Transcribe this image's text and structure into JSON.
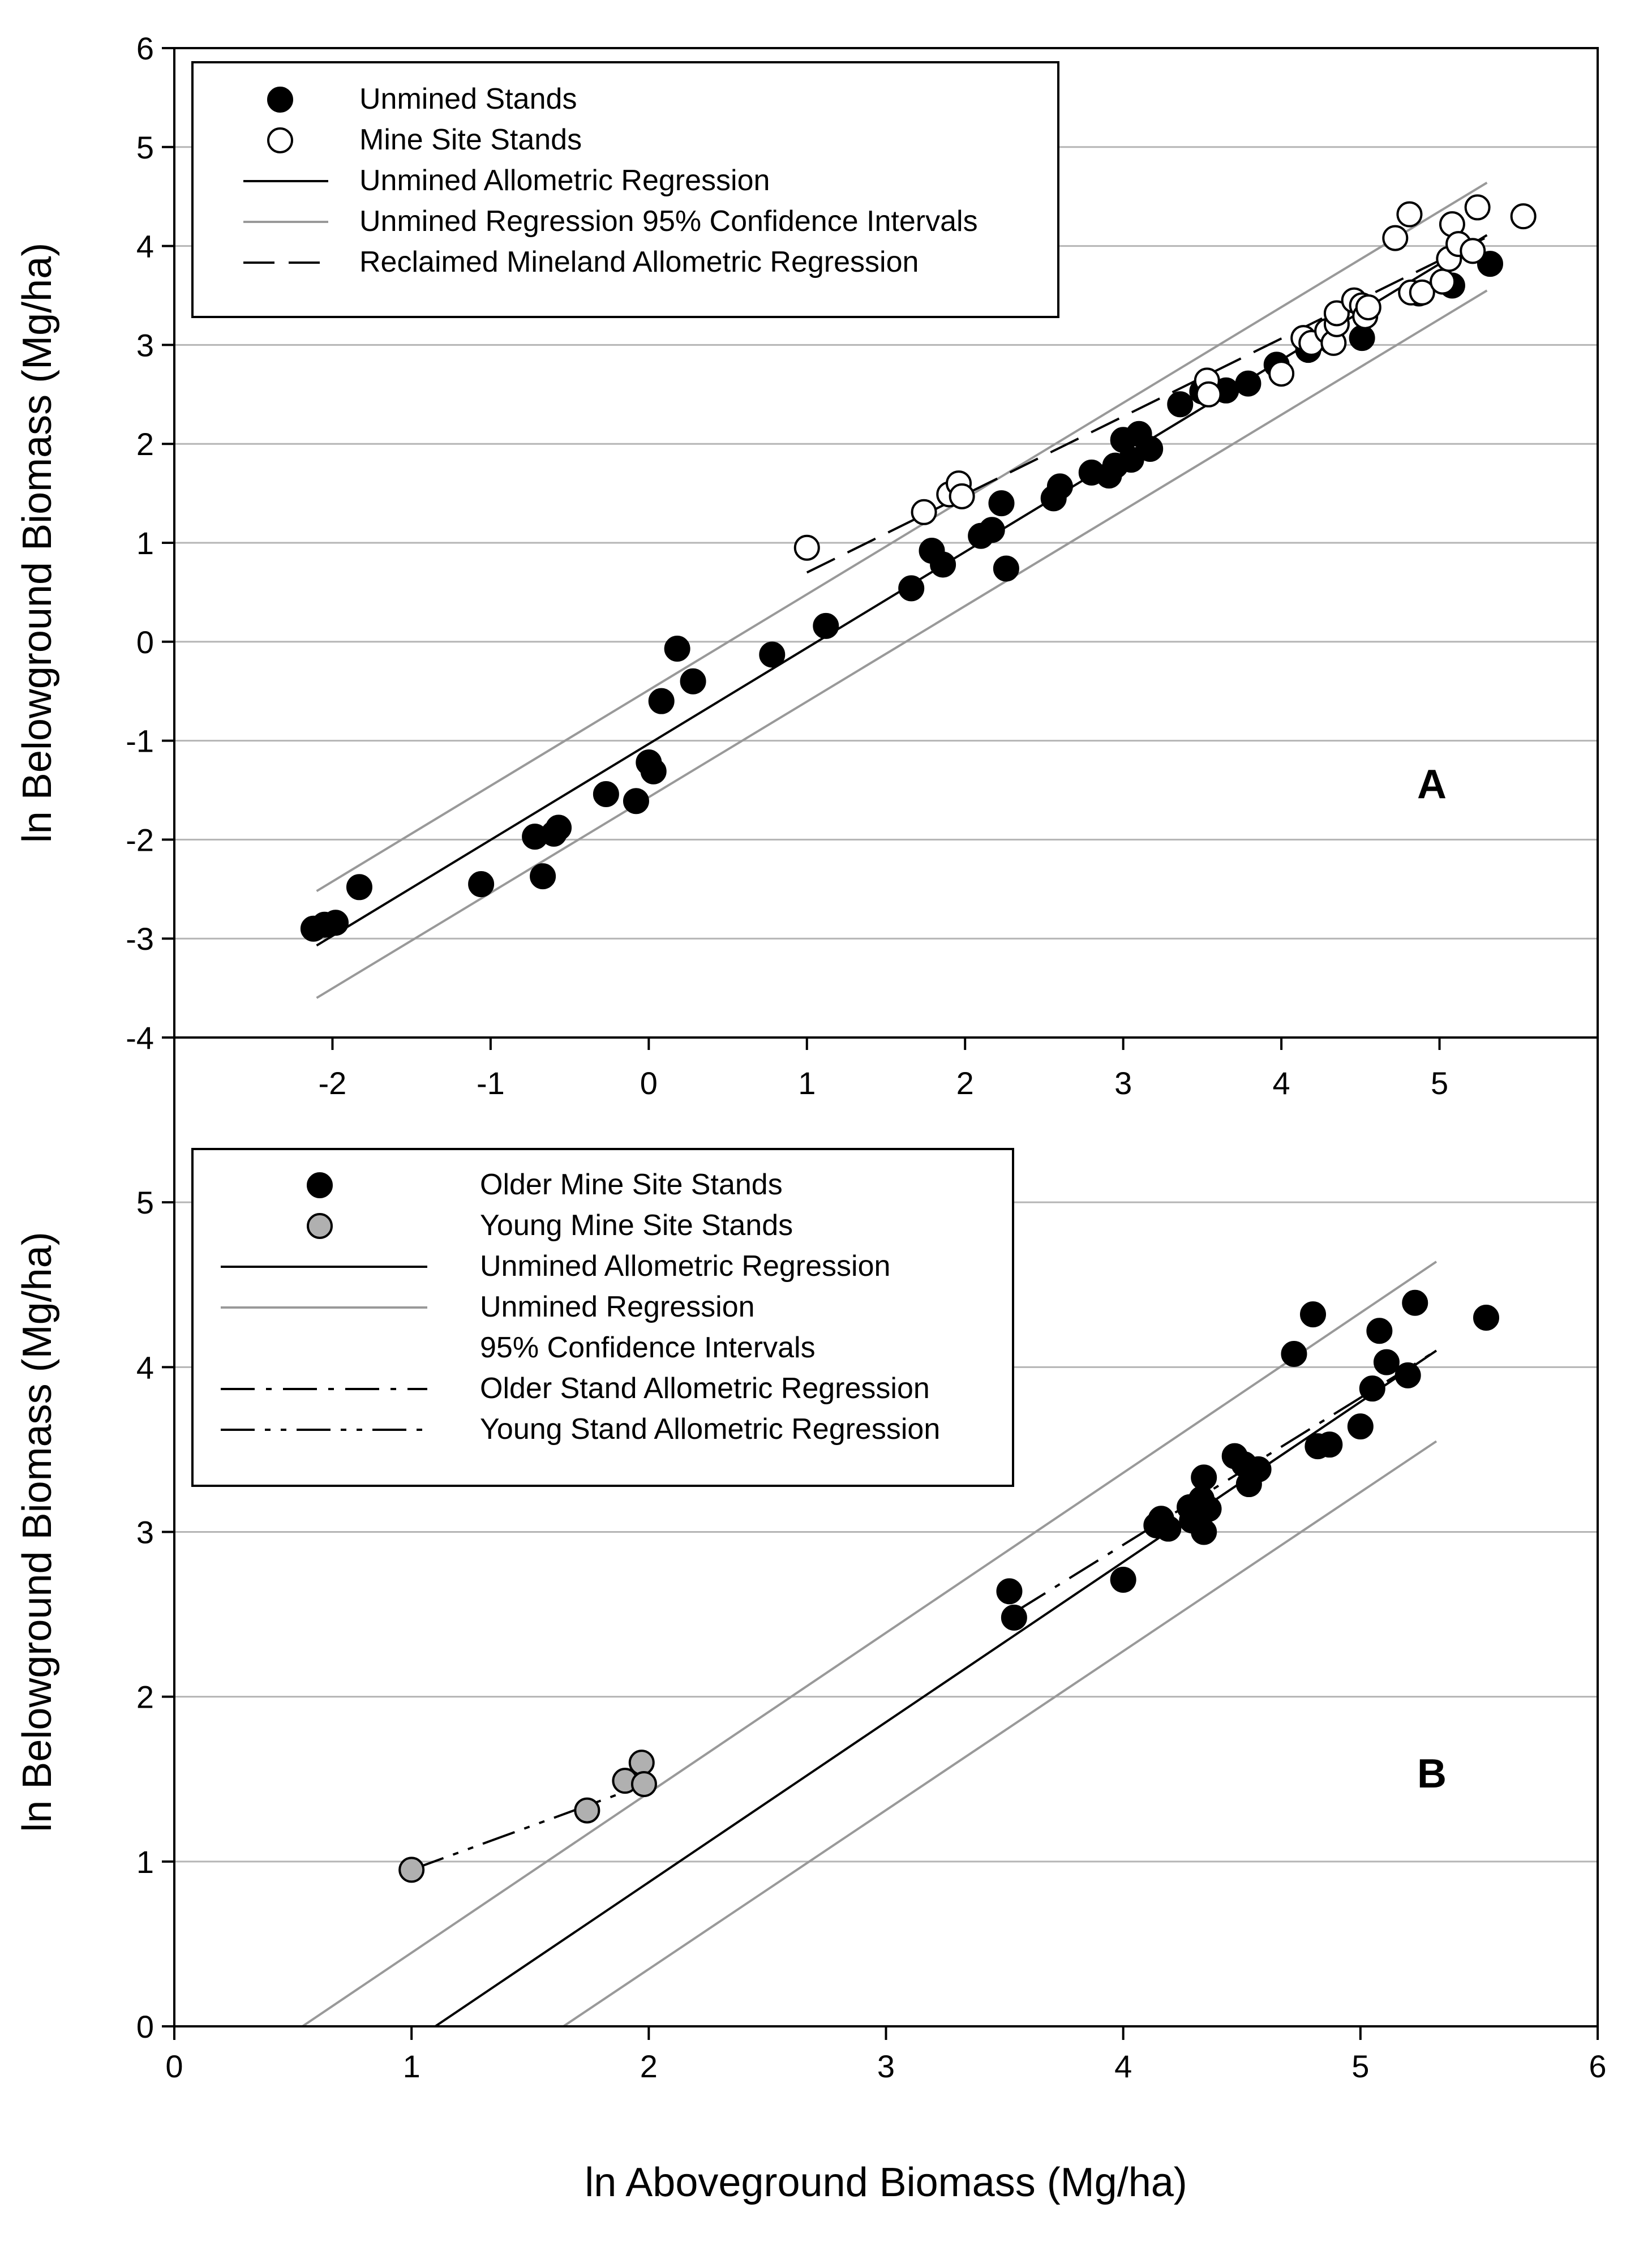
{
  "chart_data": [
    {
      "panel": "A",
      "type": "scatter",
      "panel_label": "A",
      "xlabel": "",
      "ylabel": "ln Belowground Biomass (Mg/ha)",
      "xlim": [
        -3,
        6
      ],
      "ylim": [
        -4,
        6
      ],
      "xticks": [
        -2,
        -1,
        0,
        1,
        2,
        3,
        4,
        5
      ],
      "yticks": [
        -4,
        -3,
        -2,
        -1,
        0,
        1,
        2,
        3,
        4,
        5,
        6
      ],
      "grid_y": [
        -3,
        -2,
        -1,
        0,
        1,
        2,
        3,
        4,
        5
      ],
      "legend": [
        {
          "label": "Unmined Stands",
          "kind": "marker",
          "fill": "#000000"
        },
        {
          "label": "Mine Site Stands",
          "kind": "marker",
          "fill": "#ffffff"
        },
        {
          "label": "Unmined Allometric Regression",
          "kind": "line",
          "color": "#000000",
          "dash": "solid"
        },
        {
          "label": "Unmined Regression 95% Confidence Intervals",
          "kind": "line",
          "color": "#999999",
          "dash": "solid"
        },
        {
          "label": "Reclaimed Mineland Allometric Regression",
          "kind": "line",
          "color": "#000000",
          "dash": "dashed"
        }
      ],
      "series": [
        {
          "name": "Unmined Stands",
          "fill": "#000000",
          "points": [
            [
              -2.12,
              -2.9
            ],
            [
              -2.05,
              -2.86
            ],
            [
              -1.98,
              -2.84
            ],
            [
              -1.83,
              -2.48
            ],
            [
              -1.06,
              -2.45
            ],
            [
              -0.72,
              -1.97
            ],
            [
              -0.67,
              -2.37
            ],
            [
              -0.6,
              -1.94
            ],
            [
              -0.57,
              -1.88
            ],
            [
              -0.27,
              -1.54
            ],
            [
              -0.08,
              -1.61
            ],
            [
              0.0,
              -1.22
            ],
            [
              0.03,
              -1.31
            ],
            [
              0.08,
              -0.6
            ],
            [
              0.18,
              -0.07
            ],
            [
              0.28,
              -0.4
            ],
            [
              0.78,
              -0.13
            ],
            [
              1.12,
              0.16
            ],
            [
              1.66,
              0.54
            ],
            [
              1.79,
              0.92
            ],
            [
              1.86,
              0.78
            ],
            [
              2.1,
              1.07
            ],
            [
              2.17,
              1.13
            ],
            [
              2.23,
              1.4
            ],
            [
              2.26,
              0.74
            ],
            [
              2.56,
              1.45
            ],
            [
              2.6,
              1.57
            ],
            [
              2.8,
              1.71
            ],
            [
              2.91,
              1.68
            ],
            [
              2.95,
              1.78
            ],
            [
              3.0,
              2.04
            ],
            [
              3.05,
              1.84
            ],
            [
              3.1,
              2.1
            ],
            [
              3.17,
              1.95
            ],
            [
              3.36,
              2.4
            ],
            [
              3.5,
              2.53
            ],
            [
              3.65,
              2.54
            ],
            [
              3.79,
              2.61
            ],
            [
              3.97,
              2.8
            ],
            [
              4.17,
              2.95
            ],
            [
              4.32,
              3.03
            ],
            [
              4.51,
              3.07
            ],
            [
              4.87,
              3.52
            ],
            [
              5.08,
              3.6
            ],
            [
              5.32,
              3.82
            ]
          ]
        },
        {
          "name": "Mine Site Stands",
          "fill": "#ffffff",
          "points": [
            [
              1.0,
              0.95
            ],
            [
              1.74,
              1.31
            ],
            [
              1.9,
              1.49
            ],
            [
              1.96,
              1.6
            ],
            [
              1.98,
              1.47
            ],
            [
              3.53,
              2.64
            ],
            [
              3.54,
              2.5
            ],
            [
              4.0,
              2.71
            ],
            [
              4.14,
              3.07
            ],
            [
              4.19,
              3.02
            ],
            [
              4.29,
              3.14
            ],
            [
              4.33,
              3.02
            ],
            [
              4.35,
              3.21
            ],
            [
              4.35,
              3.32
            ],
            [
              4.46,
              3.45
            ],
            [
              4.51,
              3.4
            ],
            [
              4.53,
              3.29
            ],
            [
              4.55,
              3.38
            ],
            [
              4.72,
              4.08
            ],
            [
              4.81,
              4.32
            ],
            [
              4.82,
              3.53
            ],
            [
              4.89,
              3.53
            ],
            [
              5.02,
              3.64
            ],
            [
              5.06,
              3.87
            ],
            [
              5.08,
              4.22
            ],
            [
              5.12,
              4.02
            ],
            [
              5.21,
              3.95
            ],
            [
              5.24,
              4.39
            ],
            [
              5.53,
              4.3
            ]
          ]
        }
      ],
      "lines": [
        {
          "name": "Unmined Allometric Regression",
          "x": [
            -2.1,
            5.3
          ],
          "y": [
            -3.07,
            4.11
          ],
          "color": "#000000",
          "dash": "solid"
        },
        {
          "name": "Unmined Regression 95% Confidence Interval (upper)",
          "x": [
            -2.1,
            5.3
          ],
          "y": [
            -2.52,
            4.64
          ],
          "color": "#999999",
          "dash": "solid"
        },
        {
          "name": "Unmined Regression 95% Confidence Interval (lower)",
          "x": [
            -2.1,
            5.3
          ],
          "y": [
            -3.6,
            3.55
          ],
          "color": "#999999",
          "dash": "solid"
        },
        {
          "name": "Reclaimed Mineland Allometric Regression",
          "x": [
            1.0,
            5.3
          ],
          "y": [
            0.7,
            4.09
          ],
          "color": "#000000",
          "dash": "dashed"
        }
      ]
    },
    {
      "panel": "B",
      "type": "scatter",
      "panel_label": "B",
      "xlabel": "ln Aboveground Biomass (Mg/ha)",
      "ylabel": "ln Belowground Biomass (Mg/ha)",
      "xlim": [
        0,
        6
      ],
      "ylim": [
        0,
        6
      ],
      "xticks": [
        0,
        1,
        2,
        3,
        4,
        5,
        6
      ],
      "yticks": [
        0,
        1,
        2,
        3,
        4,
        5
      ],
      "grid_y": [
        1,
        2,
        3,
        4,
        5
      ],
      "legend": [
        {
          "label": "Older Mine Site Stands",
          "kind": "marker",
          "fill": "#000000"
        },
        {
          "label": "Young Mine Site Stands",
          "kind": "marker",
          "fill": "#b0b0b0"
        },
        {
          "label": "Unmined Allometric Regression",
          "kind": "line",
          "color": "#000000",
          "dash": "solid"
        },
        {
          "label": "Unmined Regression",
          "kind": "line",
          "color": "#999999",
          "dash": "solid"
        },
        {
          "label": "95% Confidence Intervals",
          "kind": "text"
        },
        {
          "label": "Older Stand Allometric Regression",
          "kind": "line",
          "color": "#000000",
          "dash": "dashdot"
        },
        {
          "label": "Young Stand Allometric Regression",
          "kind": "line",
          "color": "#000000",
          "dash": "dashdotdot"
        }
      ],
      "series": [
        {
          "name": "Older Mine Site Stands",
          "fill": "#000000",
          "points": [
            [
              3.52,
              2.64
            ],
            [
              3.54,
              2.48
            ],
            [
              4.0,
              2.71
            ],
            [
              4.14,
              3.04
            ],
            [
              4.16,
              3.08
            ],
            [
              4.19,
              3.02
            ],
            [
              4.28,
              3.15
            ],
            [
              4.29,
              3.07
            ],
            [
              4.33,
              3.2
            ],
            [
              4.34,
              3.33
            ],
            [
              4.34,
              3.0
            ],
            [
              4.36,
              3.14
            ],
            [
              4.47,
              3.46
            ],
            [
              4.51,
              3.41
            ],
            [
              4.53,
              3.29
            ],
            [
              4.57,
              3.38
            ],
            [
              4.72,
              4.08
            ],
            [
              4.8,
              4.32
            ],
            [
              4.82,
              3.52
            ],
            [
              4.87,
              3.53
            ],
            [
              5.0,
              3.64
            ],
            [
              5.05,
              3.87
            ],
            [
              5.08,
              4.22
            ],
            [
              5.11,
              4.03
            ],
            [
              5.2,
              3.95
            ],
            [
              5.23,
              4.39
            ],
            [
              5.53,
              4.3
            ]
          ]
        },
        {
          "name": "Young Mine Site Stands",
          "fill": "#b0b0b0",
          "points": [
            [
              1.0,
              0.95
            ],
            [
              1.74,
              1.31
            ],
            [
              1.9,
              1.49
            ],
            [
              1.97,
              1.6
            ],
            [
              1.98,
              1.47
            ]
          ]
        }
      ],
      "lines": [
        {
          "name": "Unmined Allometric Regression",
          "x": [
            1.1,
            5.32
          ],
          "y": [
            0.0,
            4.1
          ],
          "color": "#000000",
          "dash": "solid"
        },
        {
          "name": "Unmined Regression 95% Confidence Interval (upper)",
          "x": [
            0.54,
            5.32
          ],
          "y": [
            0.0,
            4.64
          ],
          "color": "#999999",
          "dash": "solid"
        },
        {
          "name": "Unmined Regression 95% Confidence Interval (lower)",
          "x": [
            1.64,
            5.32
          ],
          "y": [
            0.0,
            3.55
          ],
          "color": "#999999",
          "dash": "solid"
        },
        {
          "name": "Older Stand Allometric Regression",
          "x": [
            3.55,
            5.32
          ],
          "y": [
            2.52,
            4.1
          ],
          "color": "#000000",
          "dash": "dashdot"
        },
        {
          "name": "Young Stand Allometric Regression",
          "x": [
            1.0,
            1.97
          ],
          "y": [
            0.95,
            1.46
          ],
          "color": "#000000",
          "dash": "dashdotdot"
        }
      ]
    }
  ]
}
